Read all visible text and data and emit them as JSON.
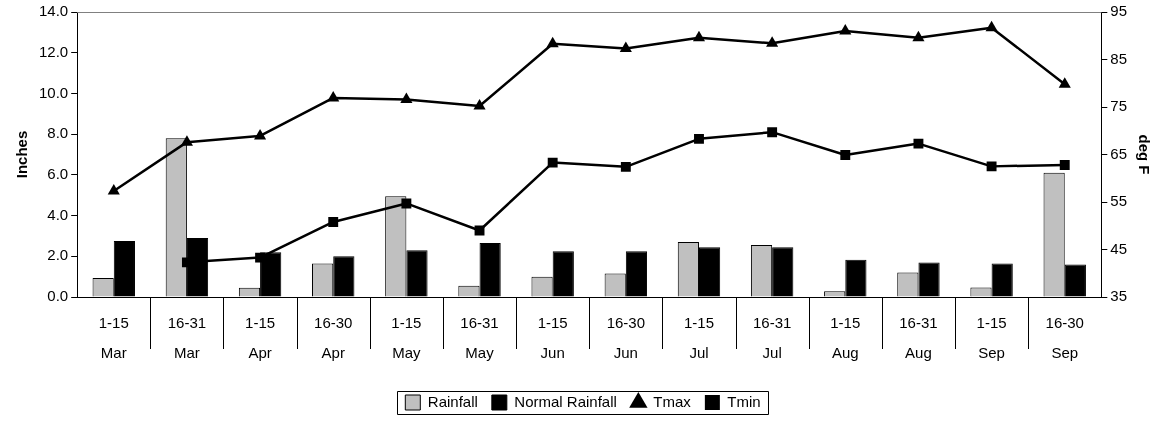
{
  "chart_data": {
    "type": "bar",
    "categories": [
      "1-15\nMar",
      "16-31\nMar",
      "1-15\nApr",
      "16-30\nApr",
      "1-15\nMay",
      "16-31\nMay",
      "1-15\nJun",
      "16-30\nJun",
      "1-15\nJul",
      "16-31\nJul",
      "1-15\nAug",
      "16-31\nAug",
      "1-15\nSep",
      "16-30\nSep"
    ],
    "series": [
      {
        "name": "Rainfall",
        "color": "#c0c0c0",
        "values": [
          0.93,
          7.8,
          0.45,
          1.65,
          4.95,
          0.55,
          1.0,
          1.15,
          2.7,
          2.55,
          0.28,
          1.2,
          0.47,
          6.1
        ]
      },
      {
        "name": "Normal Rainfall",
        "color": "#000000",
        "values": [
          2.75,
          2.9,
          2.2,
          2.0,
          2.3,
          2.65,
          2.25,
          2.25,
          2.45,
          2.45,
          1.83,
          1.7,
          1.65,
          1.6
        ]
      },
      {
        "name": "Tmax",
        "type": "line",
        "axis": "y2",
        "color": "#000000",
        "marker": "triangle",
        "values": [
          57.3,
          67.6,
          68.9,
          76.9,
          76.6,
          75.2,
          88.3,
          87.3,
          89.6,
          88.4,
          91.0,
          89.6,
          91.7,
          79.8
        ]
      },
      {
        "name": "Tmin",
        "type": "line",
        "axis": "y2",
        "color": "#000000",
        "marker": "square",
        "values": [
          null,
          42.3,
          43.3,
          50.8,
          54.7,
          49.0,
          63.3,
          62.4,
          68.3,
          69.7,
          64.9,
          67.3,
          62.5,
          62.8
        ]
      }
    ],
    "ylabel": "Inches",
    "y2label": "deg F",
    "ylim": [
      0,
      14
    ],
    "yticks": [
      {
        "value": 0,
        "label": "0.0"
      },
      {
        "value": 2,
        "label": "2.0"
      },
      {
        "value": 4,
        "label": "4.0"
      },
      {
        "value": 6,
        "label": "6.0"
      },
      {
        "value": 8,
        "label": "8.0"
      },
      {
        "value": 10,
        "label": "10.0"
      },
      {
        "value": 12,
        "label": "12.0"
      },
      {
        "value": 14,
        "label": "14.0"
      }
    ],
    "y2lim": [
      35,
      95
    ],
    "y2ticks": [
      35,
      45,
      55,
      65,
      75,
      85,
      95
    ],
    "grid": false,
    "legend": "bottom",
    "line_style": "solid"
  }
}
